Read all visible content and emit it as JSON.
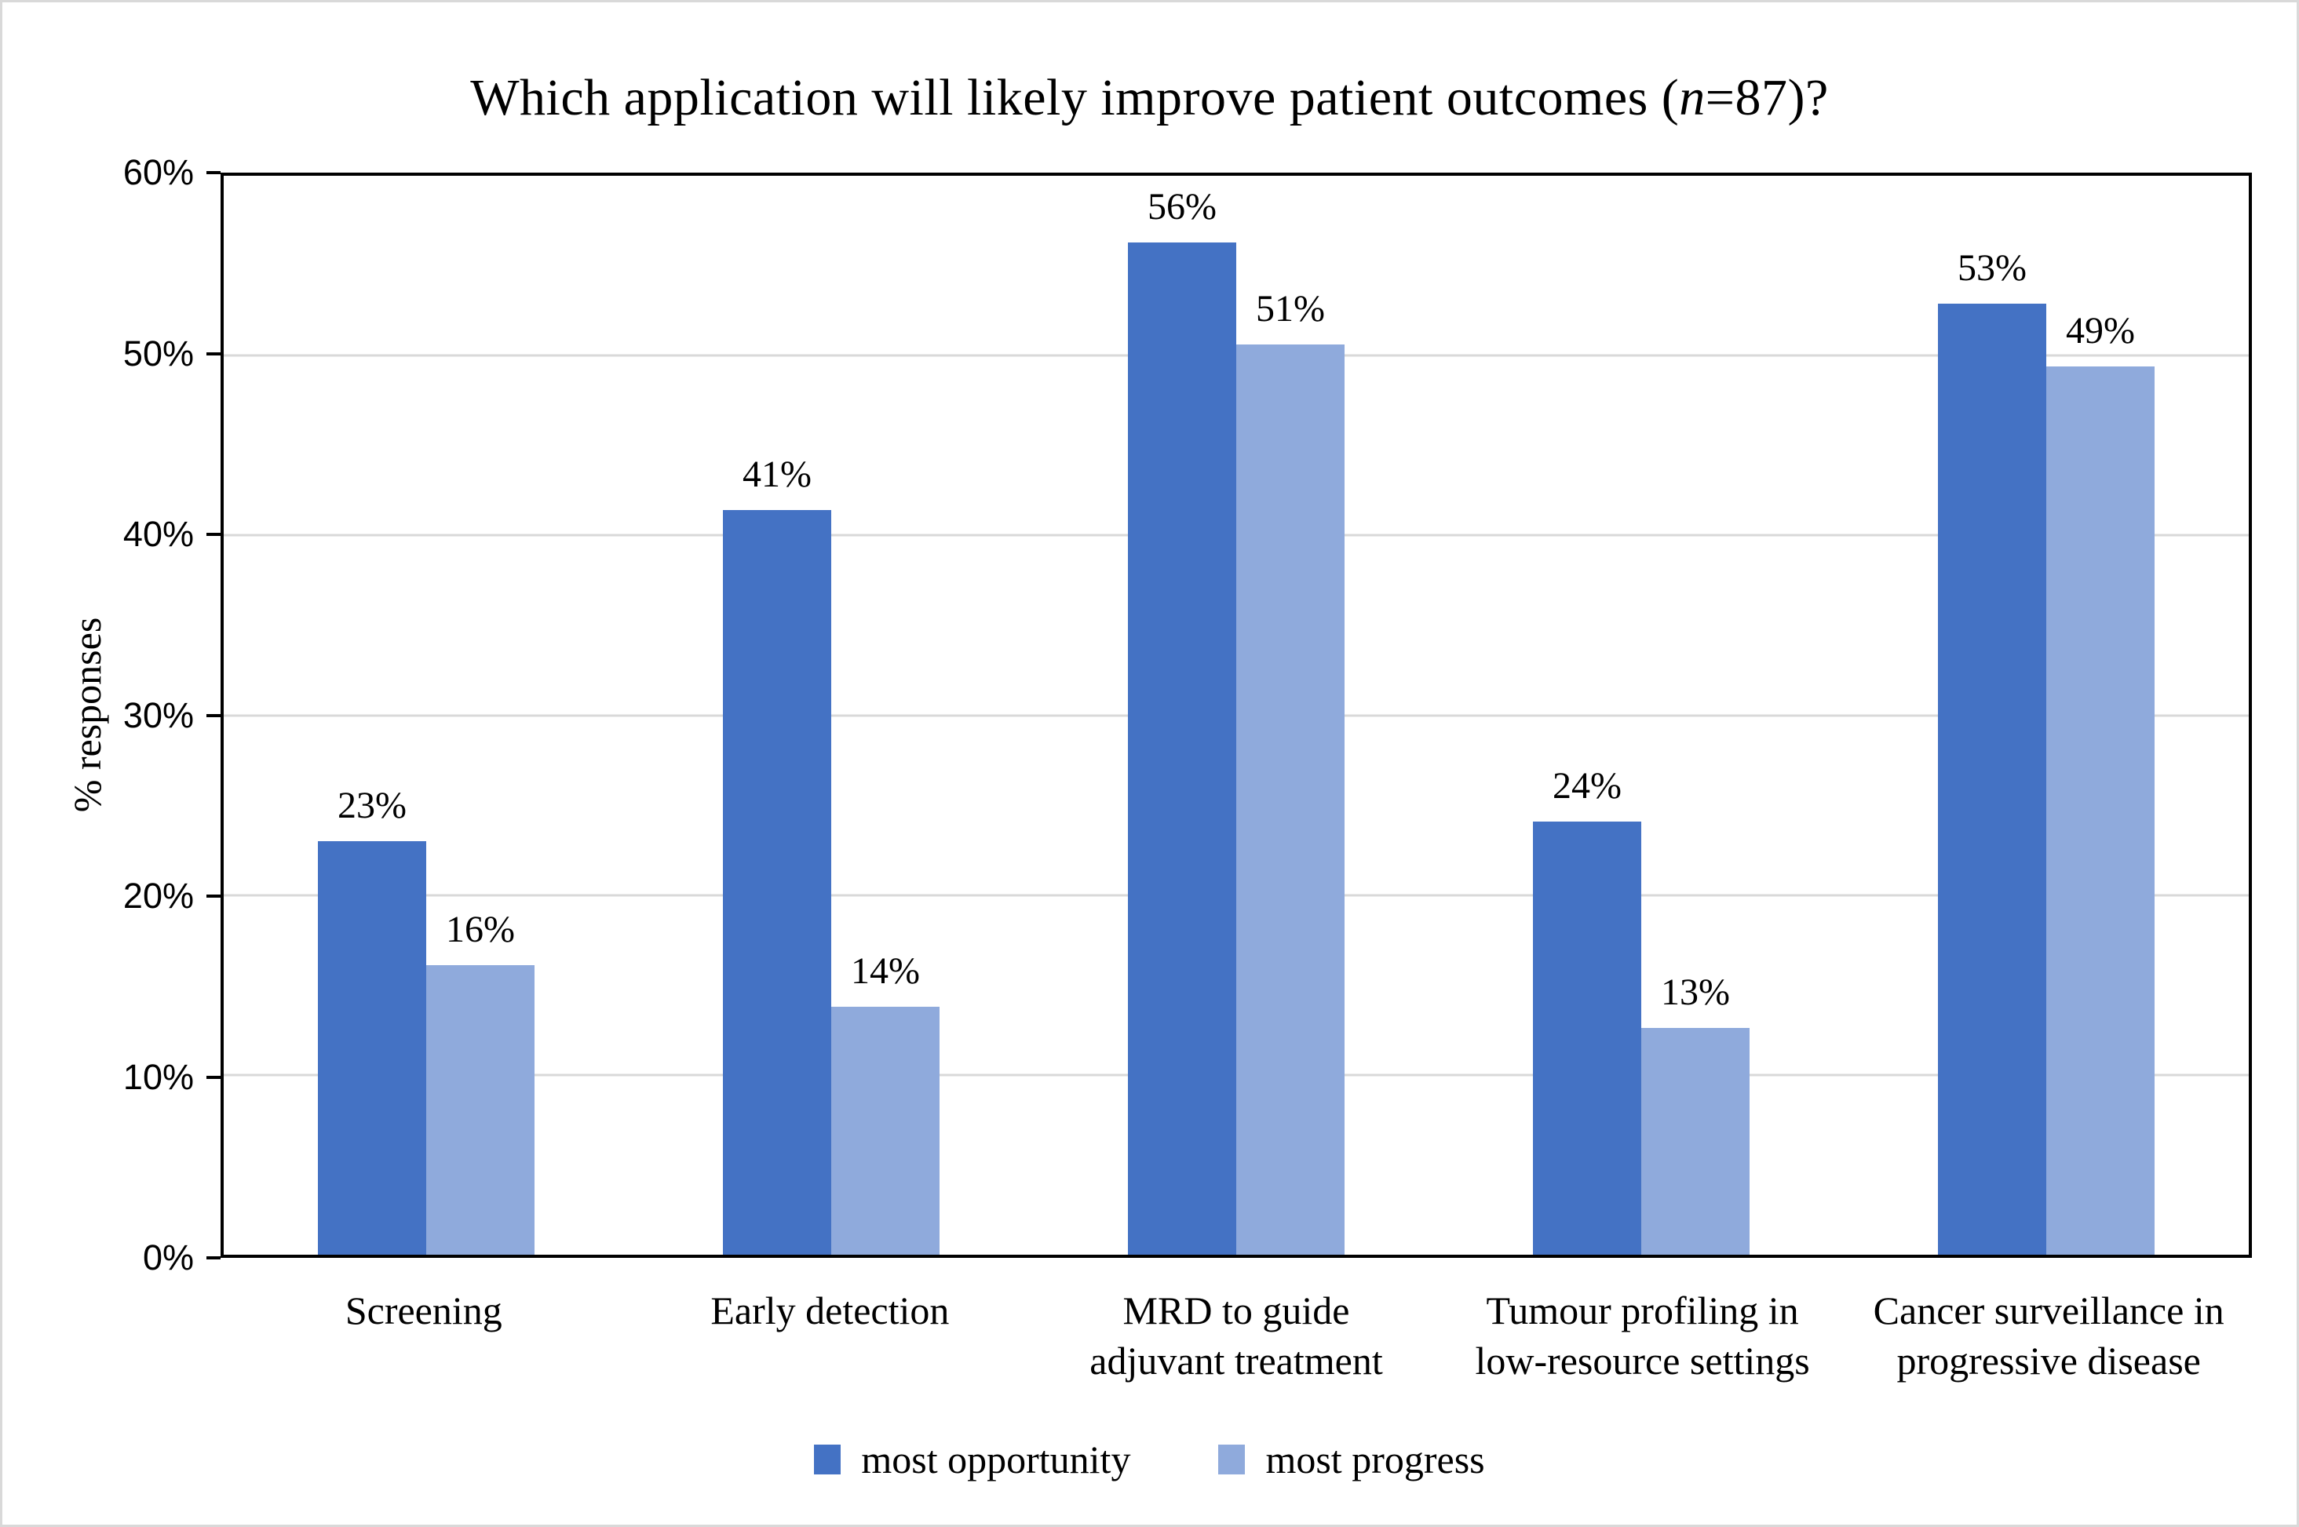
{
  "figure": {
    "background": "#ffffff",
    "border_color": "#d9d9d9"
  },
  "title": {
    "prefix": "Which application will likely improve patient outcomes (",
    "n_italic": "n",
    "suffix": "=87)?",
    "full": "Which application will likely improve patient outcomes (n=87)?"
  },
  "y_axis": {
    "label": "% responses",
    "tick_labels": [
      "0%",
      "10%",
      "20%",
      "30%",
      "40%",
      "50%",
      "60%"
    ],
    "min": 0,
    "max": 60,
    "step": 10
  },
  "legend": {
    "items": [
      {
        "label": "most opportunity",
        "color": "#4472C4"
      },
      {
        "label": "most progress",
        "color": "#8FAADC"
      }
    ]
  },
  "chart_data": {
    "type": "bar",
    "title": "Which application will likely improve patient outcomes (n=87)?",
    "n": 87,
    "categories": [
      "Screening",
      "Early detection",
      "MRD to guide adjuvant treatment",
      "Tumour profiling in low-resource settings",
      "Cancer surveillance in progressive disease"
    ],
    "category_line_breaks": [
      [
        "Screening"
      ],
      [
        "Early detection"
      ],
      [
        "MRD to guide",
        "adjuvant treatment"
      ],
      [
        "Tumour profiling in",
        "low-resource settings"
      ],
      [
        "Cancer surveillance in",
        "progressive disease"
      ]
    ],
    "series": [
      {
        "name": "most opportunity",
        "color": "#4472C4",
        "values": [
          23.0,
          41.4,
          56.3,
          24.1,
          52.9
        ],
        "labels": [
          "23%",
          "41%",
          "56%",
          "24%",
          "53%"
        ]
      },
      {
        "name": "most progress",
        "color": "#8FAADC",
        "values": [
          16.1,
          13.8,
          50.6,
          12.6,
          49.4
        ],
        "labels": [
          "16%",
          "14%",
          "51%",
          "13%",
          "49%"
        ]
      }
    ],
    "xlabel": "",
    "ylabel": "% responses",
    "ylim": [
      0,
      60
    ],
    "grid": true,
    "gridline_color": "#d9d9d9",
    "axis_color": "#000000",
    "legend_position": "bottom"
  }
}
